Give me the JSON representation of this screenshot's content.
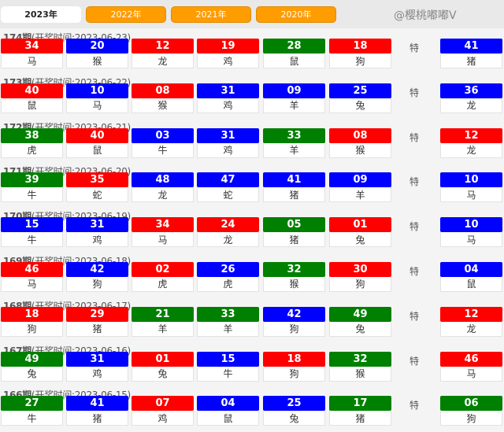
{
  "tabs": [
    {
      "label": "2023年",
      "active": true
    },
    {
      "label": "2022年"
    },
    {
      "label": "2021年"
    },
    {
      "label": "2020年"
    }
  ],
  "colors": {
    "red": "#ff0000",
    "blue": "#0000ff",
    "green": "#008000",
    "tab": "#ff9c00"
  },
  "special_label": "特",
  "watermark": "@樱桃嘟嘟V",
  "draws": [
    {
      "period": "174期",
      "time": "(开奖时间:2023-06-23)",
      "balls": [
        [
          "34",
          "马",
          "red"
        ],
        [
          "20",
          "猴",
          "blue"
        ],
        [
          "12",
          "龙",
          "red"
        ],
        [
          "19",
          "鸡",
          "red"
        ],
        [
          "28",
          "鼠",
          "green"
        ],
        [
          "18",
          "狗",
          "red"
        ]
      ],
      "special": [
        "41",
        "猪",
        "blue"
      ]
    },
    {
      "period": "173期",
      "time": "(开奖时间:2023-06-22)",
      "balls": [
        [
          "40",
          "鼠",
          "red"
        ],
        [
          "10",
          "马",
          "blue"
        ],
        [
          "08",
          "猴",
          "red"
        ],
        [
          "31",
          "鸡",
          "blue"
        ],
        [
          "09",
          "羊",
          "blue"
        ],
        [
          "25",
          "兔",
          "blue"
        ]
      ],
      "special": [
        "36",
        "龙",
        "blue"
      ]
    },
    {
      "period": "172期",
      "time": "(开奖时间:2023-06-21)",
      "balls": [
        [
          "38",
          "虎",
          "green"
        ],
        [
          "40",
          "鼠",
          "red"
        ],
        [
          "03",
          "牛",
          "blue"
        ],
        [
          "31",
          "鸡",
          "blue"
        ],
        [
          "33",
          "羊",
          "green"
        ],
        [
          "08",
          "猴",
          "red"
        ]
      ],
      "special": [
        "12",
        "龙",
        "red"
      ]
    },
    {
      "period": "171期",
      "time": "(开奖时间:2023-06-20)",
      "balls": [
        [
          "39",
          "牛",
          "green"
        ],
        [
          "35",
          "蛇",
          "red"
        ],
        [
          "48",
          "龙",
          "blue"
        ],
        [
          "47",
          "蛇",
          "blue"
        ],
        [
          "41",
          "猪",
          "blue"
        ],
        [
          "09",
          "羊",
          "blue"
        ]
      ],
      "special": [
        "10",
        "马",
        "blue"
      ]
    },
    {
      "period": "170期",
      "time": "(开奖时间:2023-06-19)",
      "balls": [
        [
          "15",
          "牛",
          "blue"
        ],
        [
          "31",
          "鸡",
          "blue"
        ],
        [
          "34",
          "马",
          "red"
        ],
        [
          "24",
          "龙",
          "red"
        ],
        [
          "05",
          "猪",
          "green"
        ],
        [
          "01",
          "兔",
          "red"
        ]
      ],
      "special": [
        "10",
        "马",
        "blue"
      ]
    },
    {
      "period": "169期",
      "time": "(开奖时间:2023-06-18)",
      "balls": [
        [
          "46",
          "马",
          "red"
        ],
        [
          "42",
          "狗",
          "blue"
        ],
        [
          "02",
          "虎",
          "red"
        ],
        [
          "26",
          "虎",
          "blue"
        ],
        [
          "32",
          "猴",
          "green"
        ],
        [
          "30",
          "狗",
          "red"
        ]
      ],
      "special": [
        "04",
        "鼠",
        "blue"
      ]
    },
    {
      "period": "168期",
      "time": "(开奖时间:2023-06-17)",
      "balls": [
        [
          "18",
          "狗",
          "red"
        ],
        [
          "29",
          "猪",
          "red"
        ],
        [
          "21",
          "羊",
          "green"
        ],
        [
          "33",
          "羊",
          "green"
        ],
        [
          "42",
          "狗",
          "blue"
        ],
        [
          "49",
          "兔",
          "green"
        ]
      ],
      "special": [
        "12",
        "龙",
        "red"
      ]
    },
    {
      "period": "167期",
      "time": "(开奖时间:2023-06-16)",
      "balls": [
        [
          "49",
          "兔",
          "green"
        ],
        [
          "31",
          "鸡",
          "blue"
        ],
        [
          "01",
          "兔",
          "red"
        ],
        [
          "15",
          "牛",
          "blue"
        ],
        [
          "18",
          "狗",
          "red"
        ],
        [
          "32",
          "猴",
          "green"
        ]
      ],
      "special": [
        "46",
        "马",
        "red"
      ]
    },
    {
      "period": "166期",
      "time": "(开奖时间:2023-06-15)",
      "balls": [
        [
          "27",
          "牛",
          "green"
        ],
        [
          "41",
          "猪",
          "blue"
        ],
        [
          "07",
          "鸡",
          "red"
        ],
        [
          "04",
          "鼠",
          "blue"
        ],
        [
          "25",
          "兔",
          "blue"
        ],
        [
          "17",
          "猪",
          "green"
        ]
      ],
      "special": [
        "06",
        "狗",
        "green"
      ]
    }
  ]
}
